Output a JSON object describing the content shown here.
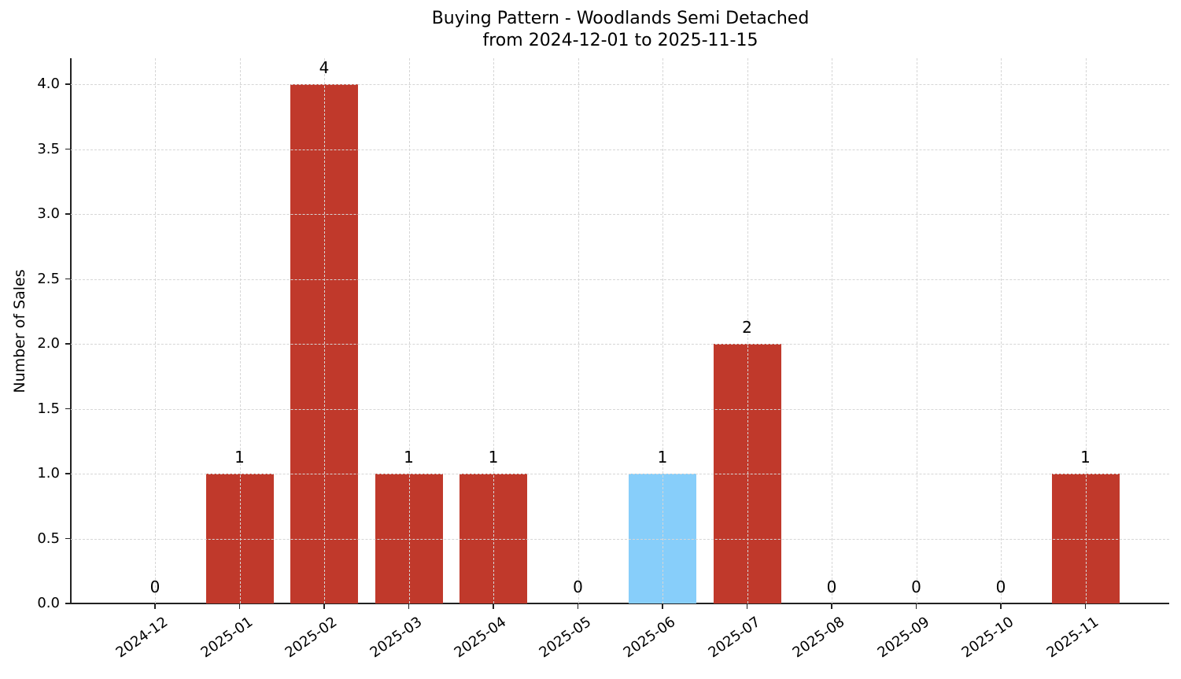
{
  "chart_data": {
    "type": "bar",
    "title": "Buying Pattern - Woodlands Semi Detached",
    "subtitle": "from 2024-12-01 to 2025-11-15",
    "xlabel": "",
    "ylabel": "Number of Sales",
    "categories": [
      "2024-12",
      "2025-01",
      "2025-02",
      "2025-03",
      "2025-04",
      "2025-05",
      "2025-06",
      "2025-07",
      "2025-08",
      "2025-09",
      "2025-10",
      "2025-11"
    ],
    "values": [
      0,
      1,
      4,
      1,
      1,
      0,
      1,
      2,
      0,
      0,
      0,
      1
    ],
    "data_labels": [
      "0",
      "1",
      "4",
      "1",
      "1",
      "0",
      "1",
      "2",
      "0",
      "0",
      "0",
      "1"
    ],
    "bar_colors": [
      "#c0392b",
      "#c0392b",
      "#c0392b",
      "#c0392b",
      "#c0392b",
      "#c0392b",
      "#87cefa",
      "#c0392b",
      "#c0392b",
      "#c0392b",
      "#c0392b",
      "#c0392b"
    ],
    "highlight_category": "2025-06",
    "ylim": [
      0,
      4.2
    ],
    "yticks": [
      "0.0",
      "0.5",
      "1.0",
      "1.5",
      "2.0",
      "2.5",
      "3.0",
      "3.5",
      "4.0"
    ],
    "grid": true,
    "grid_style": "dashed",
    "legend": null
  },
  "colors": {
    "primary_bar": "#c0392b",
    "highlight_bar": "#87cefa",
    "grid": "#d6d6d6",
    "axis": "#222222"
  }
}
